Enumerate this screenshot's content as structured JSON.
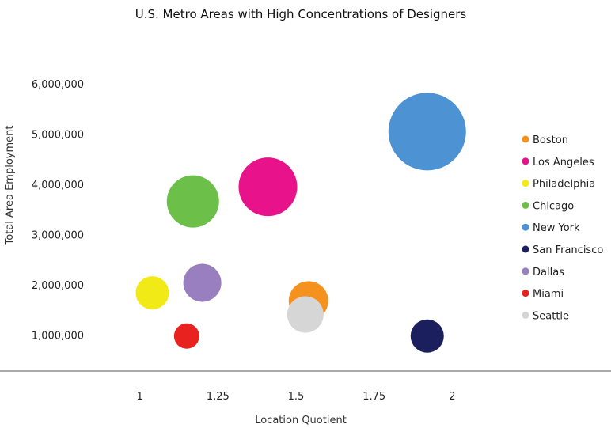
{
  "chart_data": {
    "type": "scatter",
    "title": "U.S. Metro Areas with High Concentrations of Designers",
    "xlabel": "Location Quotient",
    "ylabel": "Total Area Employment",
    "xlim": [
      0.75,
      2.25
    ],
    "ylim": [
      0,
      6000000
    ],
    "x_ticks": [
      1,
      1.25,
      1.5,
      1.75,
      2
    ],
    "x_tick_labels": [
      "1",
      "1.25",
      "1.5",
      "1.75",
      "2"
    ],
    "y_ticks": [
      1000000,
      2000000,
      3000000,
      4000000,
      5000000,
      6000000
    ],
    "y_tick_labels": [
      "1,000,000",
      "2,000,000",
      "3,000,000",
      "4,000,000",
      "5,000,000",
      "6,000,000"
    ],
    "grid": false,
    "legend_position": "right",
    "series": [
      {
        "name": "Boston",
        "x": 1.54,
        "y": 1680000,
        "size": 25,
        "color": "#F5921E"
      },
      {
        "name": "Los Angeles",
        "x": 1.41,
        "y": 3950000,
        "size": 37,
        "color": "#E8138A"
      },
      {
        "name": "Philadelphia",
        "x": 1.04,
        "y": 1840000,
        "size": 21,
        "color": "#F2EA17"
      },
      {
        "name": "Chicago",
        "x": 1.17,
        "y": 3660000,
        "size": 33,
        "color": "#6CC04A"
      },
      {
        "name": "New York",
        "x": 1.92,
        "y": 5050000,
        "size": 49,
        "color": "#4D92D2"
      },
      {
        "name": "San Francisco",
        "x": 1.92,
        "y": 980000,
        "size": 21,
        "color": "#1B1F5E"
      },
      {
        "name": "Dallas",
        "x": 1.2,
        "y": 2040000,
        "size": 24,
        "color": "#9A7FC0"
      },
      {
        "name": "Miami",
        "x": 1.15,
        "y": 980000,
        "size": 16,
        "color": "#E8231F"
      },
      {
        "name": "Seattle",
        "x": 1.53,
        "y": 1410000,
        "size": 23,
        "color": "#D6D6D6"
      }
    ]
  }
}
